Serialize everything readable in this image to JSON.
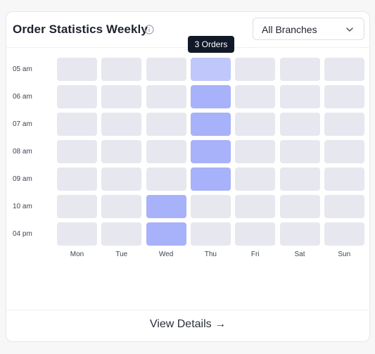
{
  "header": {
    "title": "Order Statistics Weekly",
    "branch_select": {
      "value": "All Branches"
    }
  },
  "tooltip": {
    "text": "3 Orders"
  },
  "heatmap": {
    "hours": [
      "05 am",
      "06 am",
      "07 am",
      "08 am",
      "09 am",
      "10 am",
      "04 pm"
    ],
    "days": [
      "Mon",
      "Tue",
      "Wed",
      "Thu",
      "Fri",
      "Sat",
      "Sun"
    ],
    "active_cells": [
      {
        "day": "Thu",
        "hour": "05 am",
        "state": "hover"
      },
      {
        "day": "Thu",
        "hour": "06 am",
        "state": "active"
      },
      {
        "day": "Thu",
        "hour": "07 am",
        "state": "active"
      },
      {
        "day": "Thu",
        "hour": "08 am",
        "state": "active"
      },
      {
        "day": "Thu",
        "hour": "09 am",
        "state": "active"
      },
      {
        "day": "Wed",
        "hour": "10 am",
        "state": "active"
      },
      {
        "day": "Wed",
        "hour": "04 pm",
        "state": "active"
      }
    ],
    "colors": {
      "empty": "#e7e7f0",
      "active": "#a7b2fa",
      "hover": "#bfc7fb"
    }
  },
  "footer": {
    "link_label": "View Details →"
  }
}
